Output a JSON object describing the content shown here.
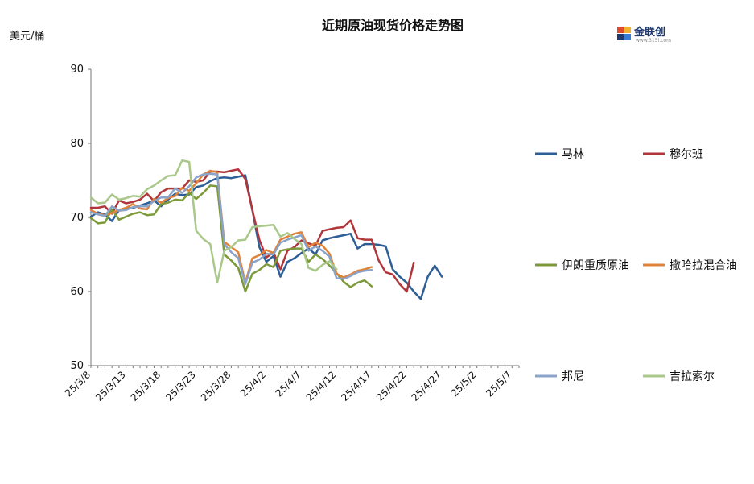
{
  "chart_data": {
    "type": "line",
    "title": "近期原油现货价格走势图",
    "ylabel": "美元/桶",
    "xlabel": "",
    "ylim": [
      50,
      90
    ],
    "yticks": [
      50,
      60,
      70,
      80,
      90
    ],
    "grid": false,
    "legend_position": "right",
    "x_tick_labels": [
      "25/3/8",
      "25/3/13",
      "25/3/18",
      "25/3/23",
      "25/3/28",
      "25/4/2",
      "25/4/7",
      "25/4/12",
      "25/4/17",
      "25/4/22",
      "25/4/27",
      "25/5/2",
      "25/5/7"
    ],
    "x": [
      "25/3/8",
      "25/3/9",
      "25/3/10",
      "25/3/11",
      "25/3/12",
      "25/3/13",
      "25/3/14",
      "25/3/15",
      "25/3/16",
      "25/3/17",
      "25/3/18",
      "25/3/19",
      "25/3/20",
      "25/3/21",
      "25/3/22",
      "25/3/23",
      "25/3/24",
      "25/3/25",
      "25/3/26",
      "25/3/27",
      "25/3/28",
      "25/3/29",
      "25/3/30",
      "25/3/31",
      "25/4/1",
      "25/4/2",
      "25/4/3",
      "25/4/4",
      "25/4/5",
      "25/4/6",
      "25/4/7",
      "25/4/8",
      "25/4/9",
      "25/4/10",
      "25/4/11",
      "25/4/12",
      "25/4/13",
      "25/4/14",
      "25/4/15",
      "25/4/16",
      "25/4/17",
      "25/4/18",
      "25/4/19",
      "25/4/20",
      "25/4/21",
      "25/4/22",
      "25/4/23",
      "25/4/24",
      "25/4/25",
      "25/4/26",
      "25/4/27",
      "25/4/28",
      "25/4/29",
      "25/4/30",
      "25/5/1",
      "25/5/2",
      "25/5/3",
      "25/5/4",
      "25/5/5",
      "25/5/6",
      "25/5/7",
      "25/5/8"
    ],
    "series": [
      {
        "name": "马林",
        "color": "#2e5e96",
        "values": [
          70.1,
          70.7,
          70.4,
          69.5,
          71.0,
          71.2,
          71.3,
          71.6,
          71.9,
          72.3,
          71.5,
          72.4,
          73.2,
          73.0,
          73.1,
          74.1,
          74.3,
          74.9,
          75.3,
          75.4,
          75.3,
          75.5,
          75.7,
          71.0,
          66.0,
          64.0,
          64.8,
          62.0,
          64.0,
          64.5,
          65.2,
          65.8,
          65.0,
          66.9,
          67.2,
          67.4,
          67.6,
          67.8,
          65.8,
          66.4,
          66.4,
          66.3,
          66.1,
          63.0,
          62.0,
          61.2,
          60.0,
          59.0,
          62.0,
          63.5,
          62.0,
          null,
          null,
          null,
          null,
          null,
          null,
          null,
          null,
          null,
          null,
          null
        ]
      },
      {
        "name": "穆尔班",
        "color": "#b0363c",
        "values": [
          71.3,
          71.3,
          71.5,
          70.5,
          72.3,
          71.9,
          72.1,
          72.4,
          73.2,
          72.2,
          73.4,
          73.9,
          73.9,
          73.9,
          75.0,
          74.8,
          75.0,
          76.2,
          76.2,
          76.1,
          76.3,
          76.5,
          75.2,
          71.0,
          67.0,
          64.6,
          65.3,
          63.0,
          65.5,
          66.0,
          66.9,
          66.5,
          66.2,
          68.2,
          68.4,
          68.6,
          68.7,
          69.6,
          67.2,
          67.0,
          67.0,
          64.2,
          62.6,
          62.3,
          61.0,
          60.0,
          63.9,
          null,
          null,
          null,
          null,
          null,
          null,
          null,
          null,
          null,
          null,
          null,
          null,
          null,
          null,
          null
        ]
      },
      {
        "name": "伊朗重质原油",
        "color": "#7d9a3b",
        "values": [
          69.9,
          69.2,
          69.3,
          71.1,
          69.7,
          70.1,
          70.5,
          70.7,
          70.3,
          70.4,
          71.8,
          72.0,
          72.4,
          72.3,
          73.3,
          72.5,
          73.3,
          74.3,
          74.2,
          65.0,
          64.2,
          63.2,
          60.0,
          62.4,
          62.9,
          63.7,
          63.3,
          65.5,
          65.7,
          65.8,
          65.8,
          64.0,
          65.0,
          64.4,
          63.5,
          62.5,
          61.3,
          60.6,
          61.2,
          61.5,
          60.7,
          null,
          null,
          null,
          null,
          null,
          null,
          null,
          null,
          null,
          null,
          null,
          null,
          null,
          null,
          null,
          null,
          null,
          null,
          null,
          null,
          null
        ]
      },
      {
        "name": "撒哈拉混合油",
        "color": "#e0833a",
        "values": [
          71.0,
          70.5,
          70.3,
          70.6,
          71.0,
          71.3,
          71.8,
          71.2,
          71.1,
          72.5,
          72.0,
          72.6,
          72.9,
          74.0,
          73.6,
          74.6,
          75.8,
          76.3,
          76.1,
          66.7,
          66.0,
          65.3,
          61.2,
          64.5,
          64.9,
          65.6,
          65.2,
          67.0,
          67.4,
          67.8,
          68.0,
          66.0,
          66.6,
          66.2,
          65.1,
          62.4,
          61.9,
          62.3,
          62.8,
          63.0,
          63.3,
          null,
          null,
          null,
          null,
          null,
          null,
          null,
          null,
          null,
          null,
          null,
          null,
          null,
          null,
          null,
          null,
          null,
          null,
          null,
          null,
          null
        ]
      },
      {
        "name": "邦尼",
        "color": "#8aa3c8",
        "values": [
          70.7,
          70.4,
          70.2,
          71.5,
          70.9,
          71.0,
          71.4,
          71.5,
          71.5,
          72.2,
          72.7,
          72.7,
          73.9,
          73.3,
          74.2,
          75.4,
          75.8,
          75.9,
          75.8,
          66.4,
          65.3,
          64.5,
          61.0,
          63.9,
          64.3,
          65.1,
          65.0,
          66.6,
          67.0,
          67.3,
          67.6,
          65.5,
          66.1,
          65.5,
          64.7,
          61.8,
          61.7,
          62.1,
          62.6,
          62.8,
          62.9,
          null,
          null,
          null,
          null,
          null,
          null,
          null,
          null,
          null,
          null,
          null,
          null,
          null,
          null,
          null,
          null,
          null,
          null,
          null,
          null,
          null
        ]
      },
      {
        "name": "吉拉索尔",
        "color": "#a9c88a",
        "values": [
          72.7,
          71.9,
          72.0,
          73.1,
          72.4,
          72.6,
          72.9,
          72.8,
          73.8,
          74.3,
          75.0,
          75.6,
          75.7,
          77.7,
          77.5,
          68.2,
          67.1,
          66.4,
          61.2,
          65.5,
          66.0,
          66.9,
          67.0,
          68.7,
          68.8,
          68.9,
          69.0,
          67.4,
          67.9,
          67.1,
          66.4,
          63.2,
          62.8,
          63.6,
          64.1,
          63.0,
          null,
          null,
          null,
          null,
          null,
          null,
          null,
          null,
          null,
          null,
          null,
          null,
          null,
          null,
          null,
          null,
          null,
          null,
          null,
          null,
          null,
          null,
          null,
          null,
          null,
          null
        ]
      }
    ]
  },
  "brand": {
    "name": "金联创",
    "sub": "www.315i.com"
  }
}
